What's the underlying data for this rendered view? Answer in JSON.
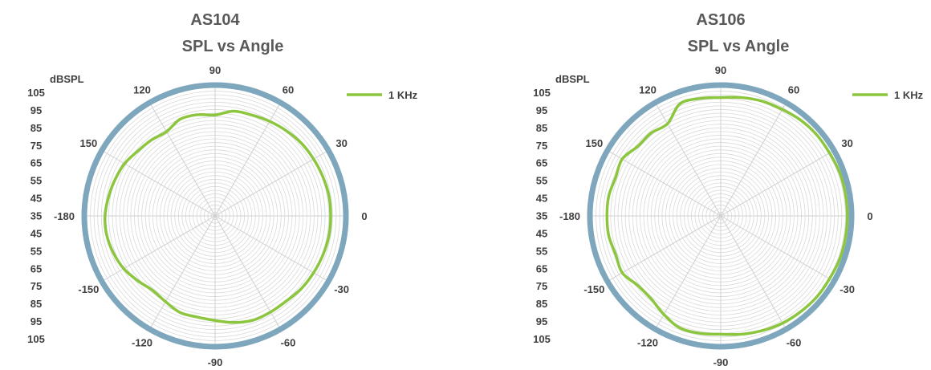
{
  "chart_data": [
    {
      "type": "polar",
      "title": "AS104",
      "subtitle": "SPL vs Angle",
      "radial_unit_label": "dBSPL",
      "radial_scale_labels": [
        "105",
        "95",
        "85",
        "75",
        "65",
        "55",
        "45",
        "35",
        "45",
        "55",
        "65",
        "75",
        "85",
        "95",
        "105"
      ],
      "angle_ticks": [
        90,
        60,
        30,
        0,
        -30,
        -60,
        -90,
        -120,
        -150,
        -180,
        150,
        120
      ],
      "rlim": [
        35,
        105
      ],
      "legend_position": "top-right",
      "series": [
        {
          "name": "1 KHz",
          "color": "#8cc63f",
          "points": [
            {
              "angle": 0,
              "r": 98
            },
            {
              "angle": 10,
              "r": 98
            },
            {
              "angle": 20,
              "r": 97.5
            },
            {
              "angle": 30,
              "r": 97
            },
            {
              "angle": 40,
              "r": 96.5
            },
            {
              "angle": 50,
              "r": 95.5
            },
            {
              "angle": 60,
              "r": 94.5
            },
            {
              "angle": 70,
              "r": 93.5
            },
            {
              "angle": 80,
              "r": 93
            },
            {
              "angle": 90,
              "r": 90
            },
            {
              "angle": 100,
              "r": 91
            },
            {
              "angle": 110,
              "r": 91
            },
            {
              "angle": 120,
              "r": 88
            },
            {
              "angle": 130,
              "r": 89
            },
            {
              "angle": 140,
              "r": 90
            },
            {
              "angle": 150,
              "r": 92
            },
            {
              "angle": 160,
              "r": 93
            },
            {
              "angle": 170,
              "r": 94
            },
            {
              "angle": 180,
              "r": 95
            },
            {
              "angle": -170,
              "r": 95
            },
            {
              "angle": -160,
              "r": 94
            },
            {
              "angle": -150,
              "r": 92.5
            },
            {
              "angle": -140,
              "r": 90
            },
            {
              "angle": -130,
              "r": 88
            },
            {
              "angle": -120,
              "r": 89
            },
            {
              "angle": -110,
              "r": 91
            },
            {
              "angle": -100,
              "r": 91
            },
            {
              "angle": -90,
              "r": 92
            },
            {
              "angle": -80,
              "r": 94
            },
            {
              "angle": -70,
              "r": 95.5
            },
            {
              "angle": -60,
              "r": 95.5
            },
            {
              "angle": -50,
              "r": 95.5
            },
            {
              "angle": -40,
              "r": 96.5
            },
            {
              "angle": -30,
              "r": 97
            },
            {
              "angle": -20,
              "r": 97.5
            },
            {
              "angle": -10,
              "r": 98
            }
          ]
        }
      ]
    },
    {
      "type": "polar",
      "title": "AS106",
      "subtitle": "SPL vs Angle",
      "radial_unit_label": "dBSPL",
      "radial_scale_labels": [
        "105",
        "95",
        "85",
        "75",
        "65",
        "55",
        "45",
        "35",
        "45",
        "55",
        "65",
        "75",
        "85",
        "95",
        "105"
      ],
      "angle_ticks": [
        90,
        60,
        30,
        0,
        -30,
        -60,
        -90,
        -120,
        -150,
        -180,
        150,
        120
      ],
      "rlim": [
        35,
        105
      ],
      "legend_position": "top-right",
      "series": [
        {
          "name": "1 KHz",
          "color": "#8cc63f",
          "points": [
            {
              "angle": 0,
              "r": 104
            },
            {
              "angle": 10,
              "r": 104
            },
            {
              "angle": 20,
              "r": 104
            },
            {
              "angle": 30,
              "r": 103.5
            },
            {
              "angle": 40,
              "r": 103.5
            },
            {
              "angle": 50,
              "r": 103
            },
            {
              "angle": 60,
              "r": 102
            },
            {
              "angle": 70,
              "r": 101.5
            },
            {
              "angle": 80,
              "r": 100.5
            },
            {
              "angle": 90,
              "r": 99.5
            },
            {
              "angle": 100,
              "r": 100
            },
            {
              "angle": 110,
              "r": 100
            },
            {
              "angle": 120,
              "r": 93
            },
            {
              "angle": 130,
              "r": 94
            },
            {
              "angle": 140,
              "r": 94
            },
            {
              "angle": 150,
              "r": 97
            },
            {
              "angle": 160,
              "r": 96
            },
            {
              "angle": 170,
              "r": 97
            },
            {
              "angle": 180,
              "r": 97
            },
            {
              "angle": -170,
              "r": 97
            },
            {
              "angle": -160,
              "r": 96
            },
            {
              "angle": -150,
              "r": 97
            },
            {
              "angle": -140,
              "r": 94
            },
            {
              "angle": -130,
              "r": 94
            },
            {
              "angle": -120,
              "r": 97
            },
            {
              "angle": -110,
              "r": 100
            },
            {
              "angle": -100,
              "r": 100
            },
            {
              "angle": -90,
              "r": 99.5
            },
            {
              "angle": -80,
              "r": 100.5
            },
            {
              "angle": -70,
              "r": 101.5
            },
            {
              "angle": -60,
              "r": 102.5
            },
            {
              "angle": -50,
              "r": 103
            },
            {
              "angle": -40,
              "r": 103.5
            },
            {
              "angle": -30,
              "r": 103.5
            },
            {
              "angle": -20,
              "r": 104
            },
            {
              "angle": -10,
              "r": 104
            }
          ]
        }
      ]
    }
  ],
  "colors": {
    "outer_ring": "#7ea7bd",
    "grid": "#d9d9d9",
    "spoke": "#d0d0d0",
    "trace": "#8cc63f",
    "text": "#404040",
    "title": "#595959"
  }
}
